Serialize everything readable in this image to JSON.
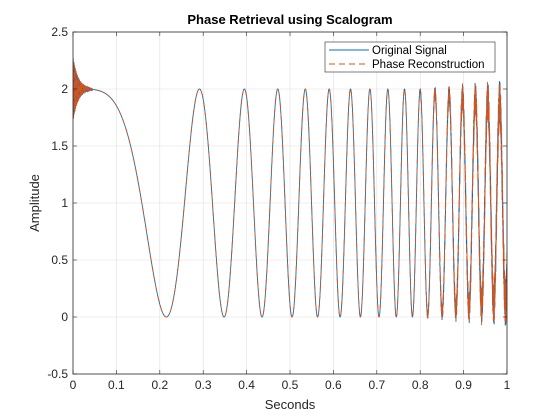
{
  "chart_data": {
    "type": "line",
    "title": "Phase Retrieval using Scalogram",
    "xlabel": "Seconds",
    "ylabel": "Amplitude",
    "xlim": [
      0,
      1
    ],
    "ylim": [
      -0.5,
      2.5
    ],
    "grid": true,
    "legend_position": "top-right",
    "x_ticks": [
      0,
      0.1,
      0.2,
      0.3,
      0.4,
      0.5,
      0.6,
      0.7,
      0.8,
      0.9,
      1
    ],
    "x_tick_labels": [
      "0",
      "0.1",
      "0.2",
      "0.3",
      "0.4",
      "0.5",
      "0.6",
      "0.7",
      "0.8",
      "0.9",
      "1"
    ],
    "y_ticks": [
      -0.5,
      0,
      0.5,
      1,
      1.5,
      2,
      2.5
    ],
    "y_tick_labels": [
      "-0.5",
      "0",
      "0.5",
      "1",
      "1.5",
      "2",
      "2.5"
    ],
    "signal_model": "chirp 1 + cos(2*pi*phase), first minimum near x=0.215, peaks at x=0.30, 0.43, crossing about 6 cycles by x=0.5",
    "series": [
      {
        "name": "Original Signal",
        "color": "#0072BD",
        "style": "solid"
      },
      {
        "name": "Phase Reconstruction",
        "color": "#D95319",
        "style": "dashed"
      }
    ],
    "sample_points": [
      {
        "x": 0.0,
        "y": 2.0
      },
      {
        "x": 0.1,
        "y": 1.68
      },
      {
        "x": 0.215,
        "y": 0.0
      },
      {
        "x": 0.3,
        "y": 2.0
      },
      {
        "x": 0.35,
        "y": 0.0
      },
      {
        "x": 0.43,
        "y": 2.0
      }
    ]
  },
  "colors": {
    "axes": "#262626",
    "grid": "#dfdfdf",
    "original": "#0072BD",
    "reconstruction": "#D95319"
  }
}
